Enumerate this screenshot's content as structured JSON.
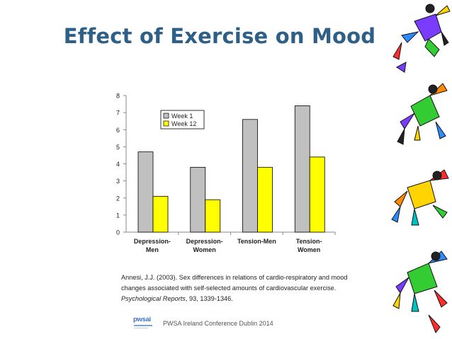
{
  "slide": {
    "title": "Effect of Exercise on Mood",
    "citation": {
      "text": "Annesi, J.J. (2003). Sex differences in relations of cardio-respiratory and mood changes associated with self-selected amounts of cardiovascular exercise. ",
      "journal": "Psychological Reports",
      "tail": ", 93, 1339-1346."
    },
    "footer": {
      "logo_text": "pwsai",
      "text": "PWSA Ireland Conference Dublin 2014"
    }
  },
  "chart_data": {
    "type": "bar",
    "title": "",
    "xlabel": "",
    "ylabel": "",
    "categories": [
      "Depression-\nMen",
      "Depression-\nWomen",
      "Tension-Men",
      "Tension-\nWomen"
    ],
    "series": [
      {
        "name": "Week 1",
        "values": [
          4.7,
          3.8,
          6.6,
          7.4
        ],
        "color": "#c0c0c0"
      },
      {
        "name": "Week 12",
        "values": [
          2.1,
          1.9,
          3.8,
          4.4
        ],
        "color": "#ffff00"
      }
    ],
    "ylim": [
      0,
      8
    ],
    "yticks": [
      0,
      1,
      2,
      3,
      4,
      5,
      6,
      7,
      8
    ],
    "grid": false,
    "legend_position": "top-left"
  },
  "colors": {
    "title": "#2e5f86",
    "deco_palette": [
      "#7a3cff",
      "#2b8cff",
      "#33cc33",
      "#ff8a00",
      "#ff2d2d",
      "#ffd400",
      "#00c2c2",
      "#222222"
    ]
  }
}
